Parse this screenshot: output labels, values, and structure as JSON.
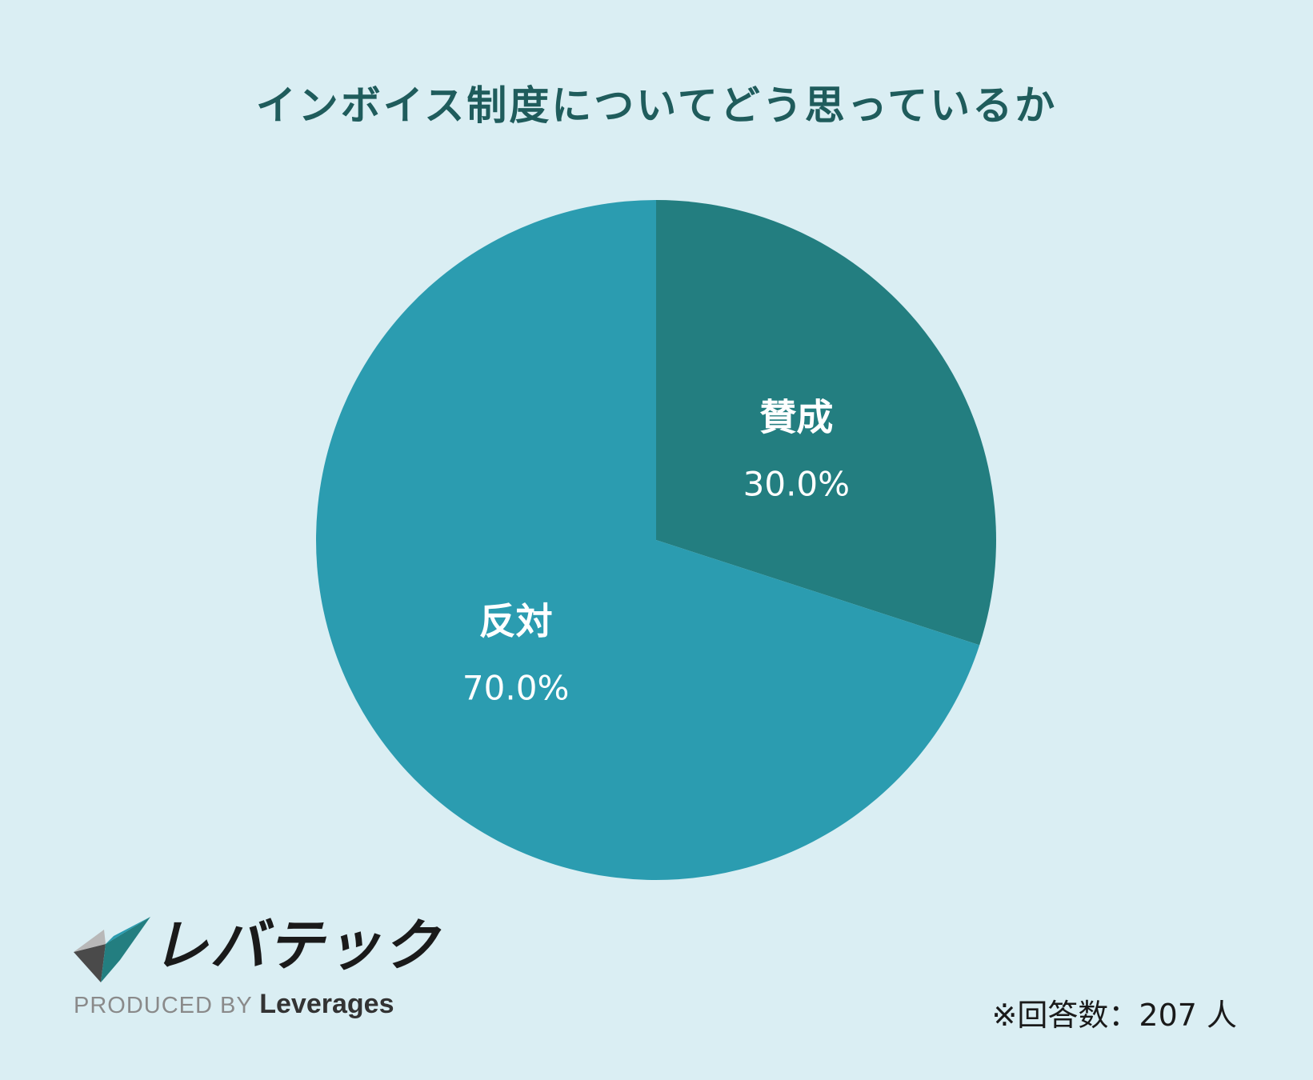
{
  "chart_data": {
    "type": "pie",
    "title": "インボイス制度についてどう思っているか",
    "slices": [
      {
        "label": "賛成",
        "value": 30.0,
        "value_label": "30.0%",
        "color": "#237e80"
      },
      {
        "label": "反対",
        "value": 70.0,
        "value_label": "70.0%",
        "color": "#2b9cb0"
      }
    ],
    "start_angle": "12 o'clock",
    "direction": "clockwise",
    "legend": "none (labels inside slices)"
  },
  "background_color": "#daeef3",
  "title_color": "#1f5c5c",
  "logo": {
    "wordmark": "レバテック",
    "produced_by": "PRODUCED BY",
    "company": "Leverages",
    "icon": "checkmark-logo-icon"
  },
  "footnote": "※回答数：207 人"
}
